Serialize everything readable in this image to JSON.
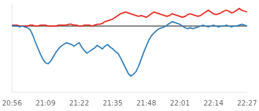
{
  "chart_data": {
    "type": "line",
    "categories": [
      "20:56",
      null,
      null,
      null,
      null,
      null,
      null,
      null,
      null,
      null,
      null,
      null,
      null,
      "21:09",
      null,
      null,
      null,
      null,
      null,
      null,
      null,
      null,
      null,
      null,
      null,
      null,
      "21:22",
      null,
      null,
      null,
      null,
      null,
      null,
      null,
      null,
      null,
      null,
      null,
      null,
      "21:35",
      null,
      null,
      null,
      null,
      null,
      null,
      null,
      null,
      null,
      null,
      null,
      null,
      "21:48",
      null,
      null,
      null,
      null,
      null,
      null,
      null,
      null,
      null,
      null,
      null,
      null,
      "22:01",
      null,
      null,
      null,
      null,
      null,
      null,
      null,
      null,
      null,
      null,
      null,
      null,
      "22:14",
      null,
      null,
      null,
      null,
      null,
      null,
      null,
      null,
      null,
      null,
      null,
      null,
      "22:27"
    ],
    "series": [
      {
        "color": "#2b7bba",
        "values": [
          1,
          0,
          0,
          -1,
          0,
          -1,
          -2,
          -4,
          -10,
          -18,
          -25,
          -32,
          -38,
          -42,
          -43,
          -40,
          -35,
          -30,
          -26,
          -23,
          -21,
          -19,
          -20,
          -21,
          -23,
          -21,
          -19,
          -24,
          -28,
          -31,
          -29,
          -27,
          -25,
          -22,
          -24,
          -26,
          -23,
          -21,
          -24,
          -26,
          -29,
          -31,
          -36,
          -42,
          -48,
          -54,
          -57,
          -55,
          -52,
          -46,
          -38,
          -30,
          -23,
          -16,
          -11,
          -8,
          -5,
          -3,
          -2,
          -1,
          1,
          3,
          5,
          4,
          3,
          2,
          0,
          -2,
          -3,
          -2,
          -3,
          -2,
          -1,
          0,
          1,
          0,
          -1,
          0,
          1,
          0,
          -1,
          0,
          0,
          1,
          0,
          -1,
          0,
          0,
          1,
          2,
          1,
          0
        ]
      },
      {
        "color": "#e8231a",
        "values": [
          1,
          1,
          1,
          0,
          0,
          0,
          0,
          1,
          1,
          0,
          0,
          1,
          1,
          1,
          0,
          0,
          0,
          0,
          1,
          1,
          1,
          1,
          2,
          2,
          1,
          1,
          0,
          0,
          1,
          1,
          1,
          0,
          1,
          2,
          2,
          3,
          5,
          6,
          7,
          8,
          10,
          12,
          14,
          15,
          16,
          15,
          14,
          13,
          12,
          11,
          12,
          11,
          10,
          12,
          14,
          16,
          15,
          14,
          13,
          12,
          11,
          12,
          14,
          13,
          12,
          11,
          10,
          11,
          13,
          14,
          13,
          12,
          11,
          12,
          14,
          16,
          18,
          16,
          14,
          13,
          14,
          15,
          17,
          18,
          17,
          15,
          16,
          18,
          20,
          18,
          17,
          16
        ]
      }
    ],
    "baseline": {
      "value": 0,
      "color": "#555555"
    },
    "ylim": [
      -75,
      25
    ],
    "grid": false,
    "tick_labels": "x"
  }
}
